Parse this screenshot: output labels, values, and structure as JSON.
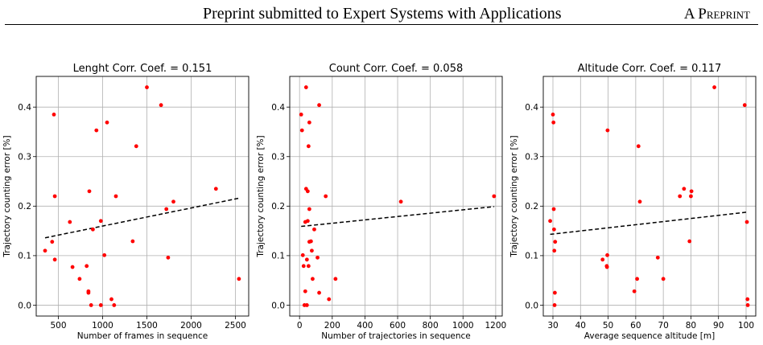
{
  "header": {
    "title": "Preprint submitted to Expert Systems with Applications",
    "right_label": "A Preprint"
  },
  "colors": {
    "points": "#ff0000",
    "trend": "#000000",
    "grid": "#b0b0b0"
  },
  "chart_data": [
    {
      "type": "scatter",
      "title": "Lenght Corr. Coef. = 0.151",
      "xlabel": "Number of frames in sequence",
      "ylabel": "Trajectory counting error [%]",
      "xlim": [
        250,
        2650
      ],
      "ylim": [
        -0.022,
        0.462
      ],
      "xticks": [
        500,
        1000,
        1500,
        2000,
        2500
      ],
      "xticklabels": [
        "500",
        "1000",
        "1500",
        "2000",
        "2500"
      ],
      "yticks": [
        0.0,
        0.1,
        0.2,
        0.3,
        0.4
      ],
      "yticklabels": [
        "0.0",
        "0.1",
        "0.2",
        "0.3",
        "0.4"
      ],
      "grid": true,
      "points": [
        [
          350,
          0.11
        ],
        [
          430,
          0.128
        ],
        [
          450,
          0.385
        ],
        [
          460,
          0.22
        ],
        [
          460,
          0.092
        ],
        [
          630,
          0.168
        ],
        [
          660,
          0.077
        ],
        [
          740,
          0.053
        ],
        [
          820,
          0.079
        ],
        [
          840,
          0.028
        ],
        [
          840,
          0.025
        ],
        [
          850,
          0.23
        ],
        [
          870,
          0.0
        ],
        [
          890,
          0.153
        ],
        [
          930,
          0.353
        ],
        [
          980,
          0.0
        ],
        [
          980,
          0.17
        ],
        [
          1020,
          0.101
        ],
        [
          1050,
          0.369
        ],
        [
          1100,
          0.012
        ],
        [
          1130,
          0.0
        ],
        [
          1150,
          0.22
        ],
        [
          1340,
          0.129
        ],
        [
          1380,
          0.321
        ],
        [
          1500,
          0.44
        ],
        [
          1660,
          0.404
        ],
        [
          1720,
          0.194
        ],
        [
          1740,
          0.096
        ],
        [
          1800,
          0.209
        ],
        [
          2280,
          0.235
        ],
        [
          2540,
          0.053
        ]
      ],
      "trend": [
        [
          350,
          0.136
        ],
        [
          2540,
          0.216
        ]
      ]
    },
    {
      "type": "scatter",
      "title": "Count Corr. Coef. = 0.058",
      "xlabel": "Number of trajectories in sequence",
      "ylabel": "Trajectory counting error [%]",
      "xlim": [
        -60,
        1240
      ],
      "ylim": [
        -0.022,
        0.462
      ],
      "xticks": [
        0,
        200,
        400,
        600,
        800,
        1000,
        1200
      ],
      "xticklabels": [
        "0",
        "200",
        "400",
        "600",
        "800",
        "1000",
        "1200"
      ],
      "yticks": [
        0.0,
        0.1,
        0.2,
        0.3,
        0.4
      ],
      "yticklabels": [
        "0.0",
        "0.1",
        "0.2",
        "0.3",
        "0.4"
      ],
      "grid": true,
      "points": [
        [
          10,
          0.385
        ],
        [
          15,
          0.353
        ],
        [
          20,
          0.101
        ],
        [
          25,
          0.079
        ],
        [
          30,
          0.0
        ],
        [
          35,
          0.028
        ],
        [
          35,
          0.168
        ],
        [
          40,
          0.44
        ],
        [
          40,
          0.235
        ],
        [
          45,
          0.0
        ],
        [
          45,
          0.092
        ],
        [
          50,
          0.23
        ],
        [
          50,
          0.17
        ],
        [
          55,
          0.321
        ],
        [
          55,
          0.079
        ],
        [
          60,
          0.128
        ],
        [
          60,
          0.369
        ],
        [
          60,
          0.194
        ],
        [
          70,
          0.129
        ],
        [
          75,
          0.11
        ],
        [
          80,
          0.053
        ],
        [
          90,
          0.153
        ],
        [
          110,
          0.096
        ],
        [
          120,
          0.404
        ],
        [
          120,
          0.025
        ],
        [
          160,
          0.22
        ],
        [
          180,
          0.012
        ],
        [
          220,
          0.053
        ],
        [
          620,
          0.209
        ],
        [
          1190,
          0.22
        ]
      ],
      "trend": [
        [
          10,
          0.159
        ],
        [
          1190,
          0.199
        ]
      ]
    },
    {
      "type": "scatter",
      "title": "Altitude Corr. Coef. = 0.117",
      "xlabel": "Average sequence altitude [m]",
      "ylabel": "Trajectory counting error [%]",
      "xlim": [
        26.5,
        103.5
      ],
      "ylim": [
        -0.022,
        0.462
      ],
      "xticks": [
        30,
        40,
        50,
        60,
        70,
        80,
        90,
        100
      ],
      "xticklabels": [
        "30",
        "40",
        "50",
        "60",
        "70",
        "80",
        "90",
        "100"
      ],
      "yticks": [
        0.0,
        0.1,
        0.2,
        0.3,
        0.4
      ],
      "yticklabels": [
        "0.0",
        "0.1",
        "0.2",
        "0.3",
        "0.4"
      ],
      "grid": true,
      "points": [
        [
          29,
          0.17
        ],
        [
          30,
          0.385
        ],
        [
          30.2,
          0.369
        ],
        [
          30.3,
          0.194
        ],
        [
          30.4,
          0.153
        ],
        [
          30.5,
          0.11
        ],
        [
          30.6,
          0.0
        ],
        [
          30.7,
          0.025
        ],
        [
          30.8,
          0.128
        ],
        [
          48,
          0.092
        ],
        [
          49.5,
          0.079
        ],
        [
          49.6,
          0.077
        ],
        [
          49.7,
          0.101
        ],
        [
          49.8,
          0.353
        ],
        [
          59.5,
          0.028
        ],
        [
          60.5,
          0.053
        ],
        [
          61,
          0.321
        ],
        [
          61.5,
          0.209
        ],
        [
          68,
          0.096
        ],
        [
          70,
          0.053
        ],
        [
          76,
          0.22
        ],
        [
          77.5,
          0.235
        ],
        [
          79.5,
          0.129
        ],
        [
          80,
          0.22
        ],
        [
          80.2,
          0.23
        ],
        [
          88.5,
          0.44
        ],
        [
          99.5,
          0.404
        ],
        [
          100.3,
          0.168
        ],
        [
          100.5,
          0.012
        ],
        [
          100.6,
          0.0
        ]
      ],
      "trend": [
        [
          29,
          0.143
        ],
        [
          100.6,
          0.188
        ]
      ]
    }
  ]
}
